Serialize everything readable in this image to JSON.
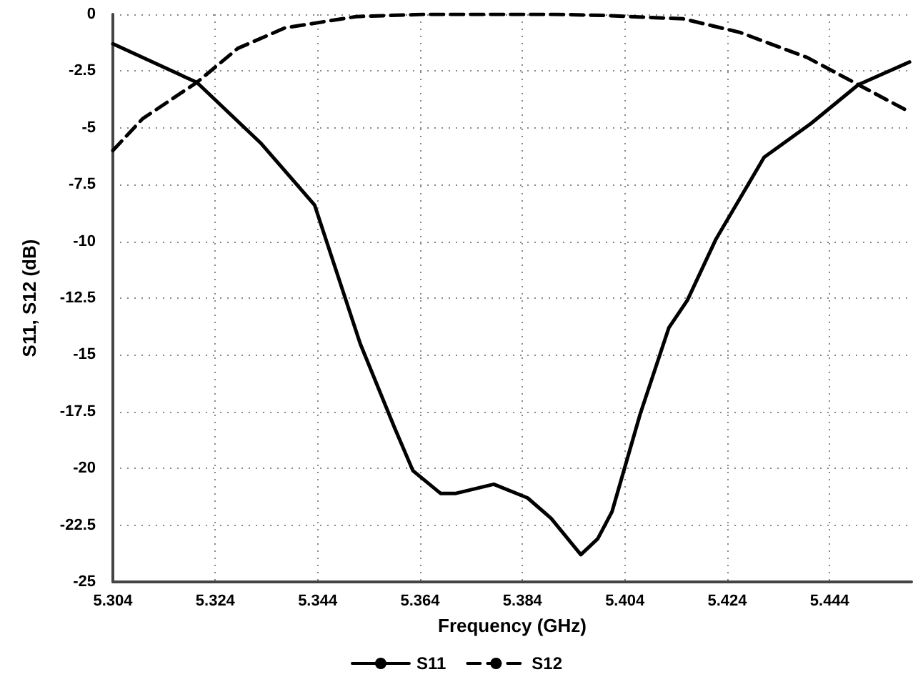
{
  "chart_data": {
    "type": "line",
    "xlabel": "Frequency (GHz)",
    "ylabel": "S11, S12 (dB)",
    "xlim": [
      5.304,
      5.46
    ],
    "xticks": [
      5.304,
      5.324,
      5.344,
      5.364,
      5.384,
      5.404,
      5.424,
      5.444
    ],
    "ylim": [
      -25,
      0
    ],
    "yticks": [
      -25,
      -22.5,
      -20,
      -17.5,
      -15,
      -12.5,
      -10,
      -7.5,
      -5,
      -2.5,
      0
    ],
    "grid": true,
    "legend": "bottom",
    "marker": "none",
    "series": [
      {
        "name": "S11",
        "color": "#000000",
        "line_style": "solid",
        "x": [
          5.304,
          5.3204,
          5.333,
          5.3434,
          5.3523,
          5.359,
          5.3626,
          5.368,
          5.371,
          5.3784,
          5.385,
          5.3896,
          5.3954,
          5.3987,
          5.4015,
          5.407,
          5.4126,
          5.4162,
          5.4218,
          5.4312,
          5.4404,
          5.4496,
          5.4596
        ],
        "values": [
          -1.3,
          -3.0,
          -5.7,
          -8.4,
          -14.5,
          -18.2,
          -20.1,
          -21.1,
          -21.1,
          -20.7,
          -21.3,
          -22.2,
          -23.8,
          -23.1,
          -21.9,
          -17.6,
          -13.8,
          -12.6,
          -9.9,
          -6.3,
          -4.8,
          -3.1,
          -2.1
        ]
      },
      {
        "name": "S12",
        "color": "#000000",
        "line_style": "dashed",
        "x": [
          5.304,
          5.3098,
          5.3204,
          5.3284,
          5.3376,
          5.3515,
          5.365,
          5.38,
          5.39,
          5.4,
          5.4154,
          5.4265,
          5.4396,
          5.4496,
          5.4596
        ],
        "values": [
          -6.0,
          -4.6,
          -3.0,
          -1.5,
          -0.6,
          -0.1,
          0,
          0,
          0,
          -0.05,
          -0.2,
          -0.8,
          -1.9,
          -3.1,
          -4.3
        ]
      }
    ]
  }
}
